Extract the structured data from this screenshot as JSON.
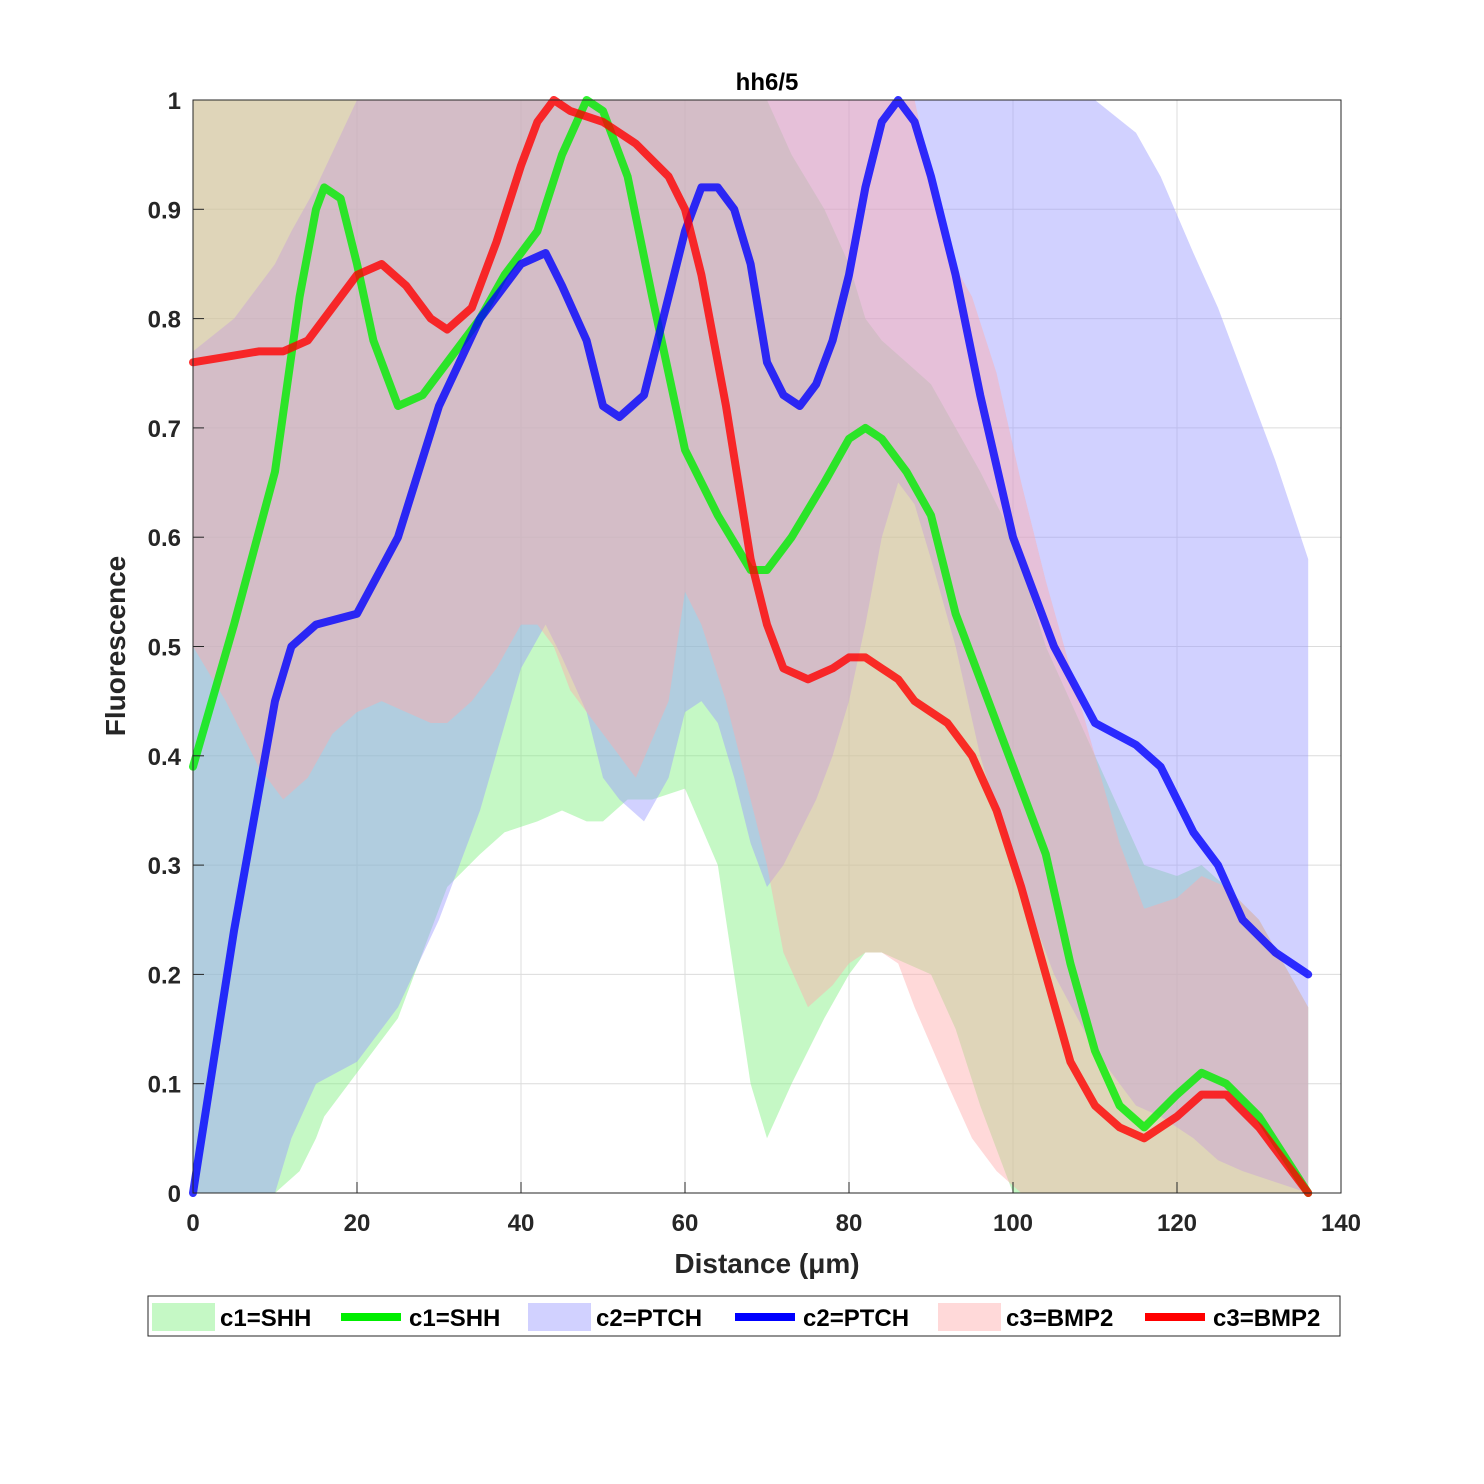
{
  "chart_data": {
    "type": "line",
    "title": "hh6/5",
    "xlabel": "Distance  (μm)",
    "ylabel": "Fluorescence",
    "xlim": [
      0,
      140
    ],
    "ylim": [
      0,
      1
    ],
    "xticks": [
      "0",
      "20",
      "40",
      "60",
      "80",
      "100",
      "120",
      "140"
    ],
    "yticks": [
      "0",
      "0.1",
      "0.2",
      "0.3",
      "0.4",
      "0.5",
      "0.6",
      "0.7",
      "0.8",
      "0.9",
      "1"
    ],
    "grid": true,
    "legend_position": "bottom",
    "legend": [
      "c1=SHH",
      "c1=SHH",
      "c2=PTCH",
      "c2=PTCH",
      "c3=BMP2",
      "c3=BMP2"
    ],
    "series": [
      {
        "name": "c1=SHH",
        "line_color": "#00ee00",
        "band_color": "#7ef07e",
        "x": [
          0,
          5,
          10,
          13,
          15,
          16,
          18,
          20,
          22,
          25,
          28,
          31,
          35,
          38,
          42,
          45,
          48,
          50,
          53,
          56,
          60,
          64,
          68,
          70,
          73,
          77,
          80,
          82,
          84,
          87,
          90,
          93,
          96,
          100,
          104,
          107,
          110,
          113,
          116,
          120,
          123,
          126,
          130,
          136
        ],
        "y": [
          0.39,
          0.52,
          0.66,
          0.82,
          0.9,
          0.92,
          0.91,
          0.85,
          0.78,
          0.72,
          0.73,
          0.76,
          0.8,
          0.84,
          0.88,
          0.95,
          1.0,
          0.99,
          0.93,
          0.82,
          0.68,
          0.62,
          0.57,
          0.57,
          0.6,
          0.65,
          0.69,
          0.7,
          0.69,
          0.66,
          0.62,
          0.53,
          0.47,
          0.39,
          0.31,
          0.21,
          0.13,
          0.08,
          0.06,
          0.09,
          0.11,
          0.1,
          0.07,
          0.0
        ],
        "upper": [
          1.0,
          1.0,
          1.0,
          1.0,
          1.0,
          1.0,
          1.0,
          1.0,
          1.0,
          1.0,
          1.0,
          1.0,
          1.0,
          1.0,
          1.0,
          1.0,
          1.0,
          1.0,
          1.0,
          1.0,
          1.0,
          1.0,
          1.0,
          1.0,
          0.95,
          0.9,
          0.85,
          0.8,
          0.78,
          0.76,
          0.74,
          0.7,
          0.66,
          0.6,
          0.5,
          0.45,
          0.4,
          0.35,
          0.3,
          0.29,
          0.3,
          0.28,
          0.25,
          0.17
        ],
        "lower": [
          0.0,
          0.0,
          0.0,
          0.02,
          0.05,
          0.07,
          0.09,
          0.11,
          0.13,
          0.16,
          0.22,
          0.28,
          0.31,
          0.33,
          0.34,
          0.35,
          0.34,
          0.34,
          0.36,
          0.36,
          0.37,
          0.3,
          0.1,
          0.05,
          0.1,
          0.16,
          0.2,
          0.22,
          0.22,
          0.21,
          0.2,
          0.15,
          0.08,
          0.0,
          0.0,
          0.0,
          0.0,
          0.0,
          0.0,
          0.0,
          0.0,
          0.0,
          0.0,
          0.0
        ]
      },
      {
        "name": "c2=PTCH",
        "line_color": "#0000ff",
        "band_color": "#9a9aff",
        "x": [
          0,
          5,
          10,
          12,
          15,
          20,
          25,
          30,
          35,
          40,
          43,
          45,
          48,
          50,
          52,
          55,
          58,
          60,
          62,
          64,
          66,
          68,
          70,
          72,
          74,
          76,
          78,
          80,
          82,
          84,
          86,
          88,
          90,
          93,
          96,
          100,
          105,
          110,
          115,
          118,
          122,
          125,
          128,
          132,
          136
        ],
        "y": [
          0.0,
          0.24,
          0.45,
          0.5,
          0.52,
          0.53,
          0.6,
          0.72,
          0.8,
          0.85,
          0.86,
          0.83,
          0.78,
          0.72,
          0.71,
          0.73,
          0.82,
          0.88,
          0.92,
          0.92,
          0.9,
          0.85,
          0.76,
          0.73,
          0.72,
          0.74,
          0.78,
          0.84,
          0.92,
          0.98,
          1.0,
          0.98,
          0.93,
          0.84,
          0.73,
          0.6,
          0.5,
          0.43,
          0.41,
          0.39,
          0.33,
          0.3,
          0.25,
          0.22,
          0.2
        ],
        "upper": [
          0.77,
          0.8,
          0.85,
          0.88,
          0.92,
          1.0,
          1.0,
          1.0,
          1.0,
          1.0,
          1.0,
          1.0,
          1.0,
          1.0,
          1.0,
          1.0,
          1.0,
          1.0,
          1.0,
          1.0,
          1.0,
          1.0,
          1.0,
          1.0,
          1.0,
          1.0,
          1.0,
          1.0,
          1.0,
          1.0,
          1.0,
          1.0,
          1.0,
          1.0,
          1.0,
          1.0,
          1.0,
          1.0,
          0.97,
          0.93,
          0.86,
          0.81,
          0.75,
          0.67,
          0.58
        ],
        "lower": [
          0.0,
          0.0,
          0.0,
          0.05,
          0.1,
          0.12,
          0.17,
          0.25,
          0.35,
          0.48,
          0.52,
          0.49,
          0.44,
          0.38,
          0.36,
          0.34,
          0.38,
          0.44,
          0.45,
          0.43,
          0.38,
          0.32,
          0.28,
          0.3,
          0.33,
          0.36,
          0.4,
          0.45,
          0.52,
          0.6,
          0.65,
          0.63,
          0.58,
          0.5,
          0.4,
          0.3,
          0.2,
          0.13,
          0.08,
          0.07,
          0.05,
          0.03,
          0.02,
          0.01,
          0.0
        ]
      },
      {
        "name": "c3=BMP2",
        "line_color": "#ff0000",
        "band_color": "#ffaaaa",
        "x": [
          0,
          4,
          8,
          11,
          14,
          17,
          20,
          23,
          26,
          29,
          31,
          34,
          37,
          40,
          42,
          44,
          46,
          50,
          54,
          58,
          60,
          62,
          65,
          68,
          70,
          72,
          75,
          78,
          80,
          82,
          84,
          86,
          88,
          92,
          95,
          98,
          101,
          104,
          107,
          110,
          113,
          116,
          120,
          123,
          126,
          130,
          136
        ],
        "y": [
          0.76,
          0.765,
          0.77,
          0.77,
          0.78,
          0.81,
          0.84,
          0.85,
          0.83,
          0.8,
          0.79,
          0.81,
          0.87,
          0.94,
          0.98,
          1.0,
          0.99,
          0.98,
          0.96,
          0.93,
          0.9,
          0.84,
          0.72,
          0.58,
          0.52,
          0.48,
          0.47,
          0.48,
          0.49,
          0.49,
          0.48,
          0.47,
          0.45,
          0.43,
          0.4,
          0.35,
          0.28,
          0.2,
          0.12,
          0.08,
          0.06,
          0.05,
          0.07,
          0.09,
          0.09,
          0.06,
          0.0
        ],
        "upper": [
          1.0,
          1.0,
          1.0,
          1.0,
          1.0,
          1.0,
          1.0,
          1.0,
          1.0,
          1.0,
          1.0,
          1.0,
          1.0,
          1.0,
          1.0,
          1.0,
          1.0,
          1.0,
          1.0,
          1.0,
          1.0,
          1.0,
          1.0,
          1.0,
          1.0,
          1.0,
          1.0,
          1.0,
          1.0,
          1.0,
          1.0,
          1.0,
          1.0,
          0.86,
          0.82,
          0.75,
          0.65,
          0.56,
          0.48,
          0.4,
          0.32,
          0.26,
          0.27,
          0.29,
          0.28,
          0.25,
          0.17
        ],
        "lower": [
          0.5,
          0.45,
          0.39,
          0.36,
          0.38,
          0.42,
          0.44,
          0.45,
          0.44,
          0.43,
          0.43,
          0.45,
          0.48,
          0.52,
          0.52,
          0.5,
          0.46,
          0.42,
          0.38,
          0.45,
          0.55,
          0.52,
          0.45,
          0.36,
          0.3,
          0.22,
          0.17,
          0.19,
          0.21,
          0.22,
          0.22,
          0.21,
          0.17,
          0.1,
          0.05,
          0.02,
          0.0,
          0.0,
          0.0,
          0.0,
          0.0,
          0.0,
          0.0,
          0.0,
          0.0,
          0.0,
          0.0
        ]
      }
    ]
  }
}
